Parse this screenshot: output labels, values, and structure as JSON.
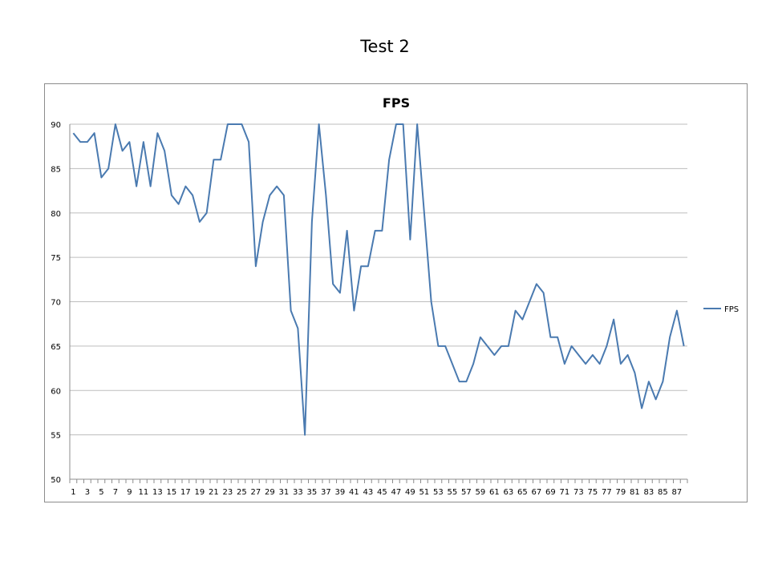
{
  "slide": {
    "title": "Test 2"
  },
  "chart_data": {
    "type": "line",
    "title": "FPS",
    "xlabel": "",
    "ylabel": "",
    "ylim": [
      50,
      90
    ],
    "yticks": [
      50,
      55,
      60,
      65,
      70,
      75,
      80,
      85,
      90
    ],
    "x": [
      1,
      2,
      3,
      4,
      5,
      6,
      7,
      8,
      9,
      10,
      11,
      12,
      13,
      14,
      15,
      16,
      17,
      18,
      19,
      20,
      21,
      22,
      23,
      24,
      25,
      26,
      27,
      28,
      29,
      30,
      31,
      32,
      33,
      34,
      35,
      36,
      37,
      38,
      39,
      40,
      41,
      42,
      43,
      44,
      45,
      46,
      47,
      48,
      49,
      50,
      51,
      52,
      53,
      54,
      55,
      56,
      57,
      58,
      59,
      60,
      61,
      62,
      63,
      64,
      65,
      66,
      67,
      68,
      69,
      70,
      71,
      72,
      73,
      74,
      75,
      76,
      77,
      78,
      79,
      80,
      81,
      82,
      83,
      84,
      85,
      86,
      87,
      88
    ],
    "xtick_labels": [
      "1",
      "3",
      "5",
      "7",
      "9",
      "11",
      "13",
      "15",
      "17",
      "19",
      "21",
      "23",
      "25",
      "27",
      "29",
      "31",
      "33",
      "35",
      "37",
      "39",
      "41",
      "43",
      "45",
      "47",
      "49",
      "51",
      "53",
      "55",
      "57",
      "59",
      "61",
      "63",
      "65",
      "67",
      "69",
      "71",
      "73",
      "75",
      "77",
      "79",
      "81",
      "83",
      "85",
      "87"
    ],
    "grid": true,
    "legend_position": "right",
    "series": [
      {
        "name": "FPS",
        "color": "#4a7ab0",
        "values": [
          89,
          88,
          88,
          89,
          84,
          85,
          90,
          87,
          88,
          83,
          88,
          83,
          89,
          87,
          82,
          81,
          83,
          82,
          79,
          80,
          86,
          86,
          90,
          90,
          90,
          88,
          74,
          79,
          82,
          83,
          82,
          69,
          67,
          55,
          79,
          90,
          82,
          72,
          71,
          78,
          69,
          74,
          74,
          78,
          78,
          86,
          90,
          90,
          77,
          90,
          80,
          70,
          65,
          65,
          63,
          61,
          61,
          63,
          66,
          65,
          64,
          65,
          65,
          69,
          68,
          70,
          72,
          71,
          66,
          66,
          63,
          65,
          64,
          63,
          64,
          63,
          65,
          68,
          63,
          64,
          62,
          58,
          61,
          59,
          61,
          66,
          69,
          65
        ]
      }
    ]
  }
}
